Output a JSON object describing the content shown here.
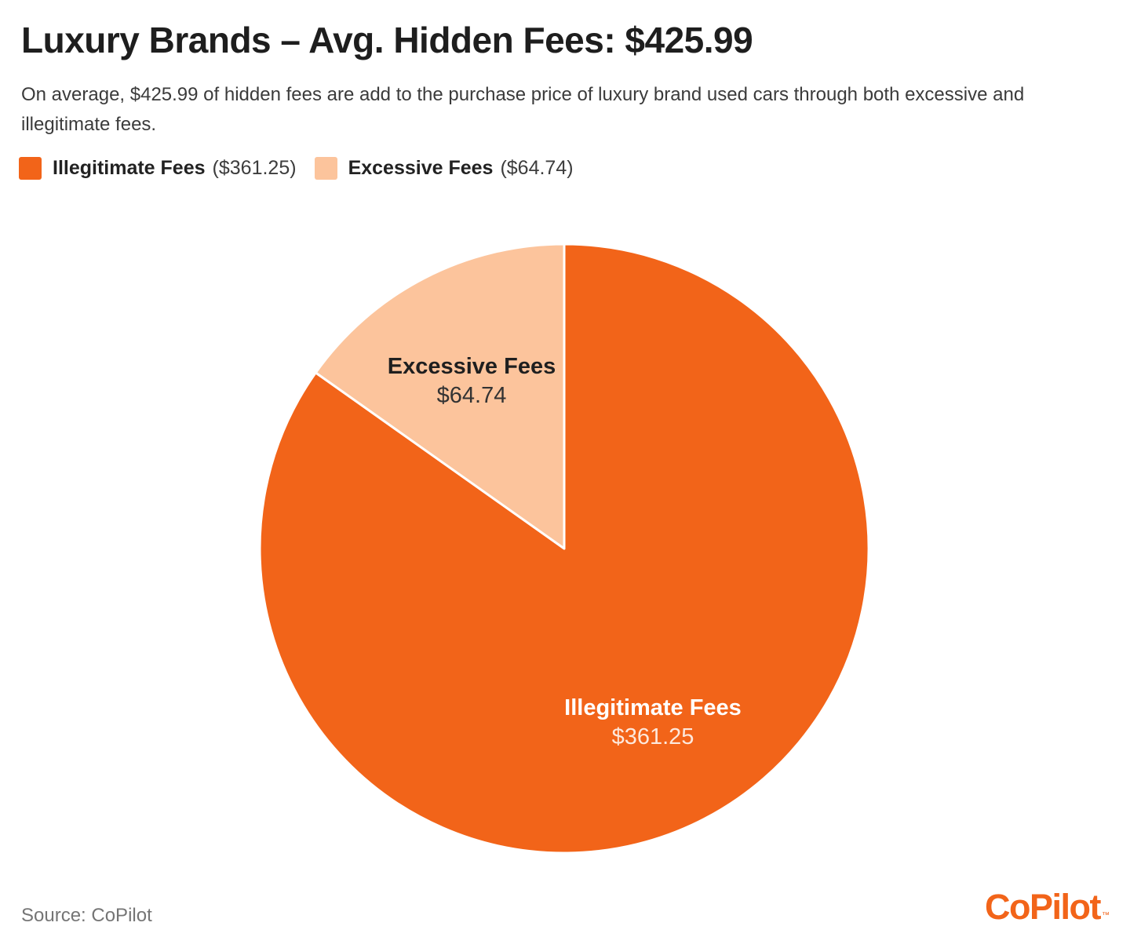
{
  "header": {
    "title": "Luxury Brands – Avg. Hidden Fees: $425.99",
    "subtitle": "On average, $425.99 of hidden fees are add to the purchase price of luxury brand used cars through both excessive and illegitimate fees."
  },
  "brand": {
    "orange": "#F26419",
    "light_orange": "#FCC49C"
  },
  "chart_data": {
    "type": "pie",
    "title": "Luxury Brands – Avg. Hidden Fees: $425.99",
    "total": 425.99,
    "total_display": "$425.99",
    "units": "USD",
    "legend_position": "top-left",
    "slice_order": "clockwise-from-top",
    "slices": [
      {
        "id": "illegitimate-fees",
        "label": "Illegitimate Fees",
        "value": 361.25,
        "value_display": "$361.25",
        "legend_value": "($361.25)",
        "percent": 84.8,
        "color": "#F26419"
      },
      {
        "id": "excessive-fees",
        "label": "Excessive Fees",
        "value": 64.74,
        "value_display": "$64.74",
        "legend_value": "($64.74)",
        "percent": 15.2,
        "color": "#FCC49C"
      }
    ]
  },
  "footer": {
    "source": "Source: CoPilot",
    "logo_text": "CoPilot",
    "logo_tm": "™"
  }
}
